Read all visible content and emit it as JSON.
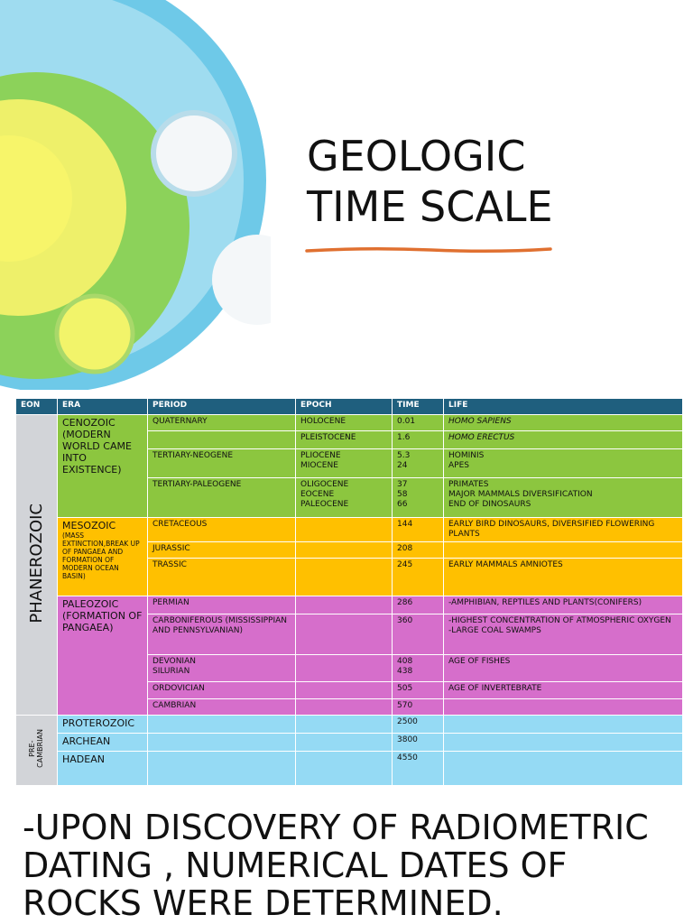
{
  "header": {
    "title": "GEOLOGIC TIME SCALE"
  },
  "table": {
    "columns": [
      "EON",
      "ERA",
      "PERIOD",
      "EPOCH",
      "TIME",
      "LIFE"
    ],
    "eons": [
      {
        "label": "PHANEROZOIC"
      },
      {
        "label": "PRE-\nCAMBRIAN"
      }
    ],
    "rows": [
      {
        "era": "CENOZOIC (MODERN WORLD CAME INTO EXISTENCE)",
        "period": "QUATERNARY",
        "epoch": "HOLOCENE",
        "time": "0.01",
        "life": "HOMO SAPIENS"
      },
      {
        "epoch": "PLEISTOCENE",
        "time": "1.6",
        "life": "HOMO ERECTUS"
      },
      {
        "period": "TERTIARY-NEOGENE",
        "epoch": "PLIOCENE\nMIOCENE",
        "time": "5.3\n24",
        "life": "HOMINIS\nAPES"
      },
      {
        "period": "TERTIARY-PALEOGENE",
        "epoch": "OLIGOCENE\nEOCENE\nPALEOCENE",
        "time": "37\n58\n66",
        "life": "PRIMATES\nMAJOR MAMMALS  DIVERSIFICATION\nEND OF DINOSAURS"
      },
      {
        "era": "MESOZOIC",
        "era_note": "(MASS EXTINCTION,BREAK UP OF PANGAEA AND FORMATION OF MODERN OCEAN BASIN)",
        "period": "CRETACEOUS",
        "time": "144",
        "life": "EARLY BIRD DINOSAURS, DIVERSIFIED FLOWERING PLANTS"
      },
      {
        "period": "JURASSIC",
        "time": "208"
      },
      {
        "period": "TRASSIC",
        "time": "245",
        "life": "EARLY MAMMALS AMNIOTES"
      },
      {
        "era": "PALEOZOIC (FORMATION OF PANGAEA)",
        "period": "PERMIAN",
        "time": "286",
        "life": "-AMPHIBIAN, REPTILES AND PLANTS(CONIFERS)"
      },
      {
        "period": "CARBONIFEROUS (MISSISSIPPIAN AND PENNSYLVANIAN)",
        "time": "360",
        "life": "-HIGHEST CONCENTRATION OF ATMOSPHERIC OXYGEN\n-LARGE COAL SWAMPS"
      },
      {
        "period": "DEVONIAN\nSILURIAN",
        "time": "408\n438",
        "life": "AGE OF FISHES"
      },
      {
        "period": "ORDOVICIAN",
        "time": "505",
        "life": "AGE OF INVERTEBRATE"
      },
      {
        "period": "CAMBRIAN",
        "time": "570"
      },
      {
        "era": "PROTEROZOIC",
        "time": "2500"
      },
      {
        "era": "ARCHEAN",
        "time": "3800"
      },
      {
        "era": "HADEAN",
        "time": "4550"
      }
    ]
  },
  "footer": {
    "lines": [
      "-UPON DISCOVERY OF RADIOMETRIC",
      "DATING , NUMERICAL DATES OF",
      "ROCKS WERE DETERMINED."
    ]
  }
}
